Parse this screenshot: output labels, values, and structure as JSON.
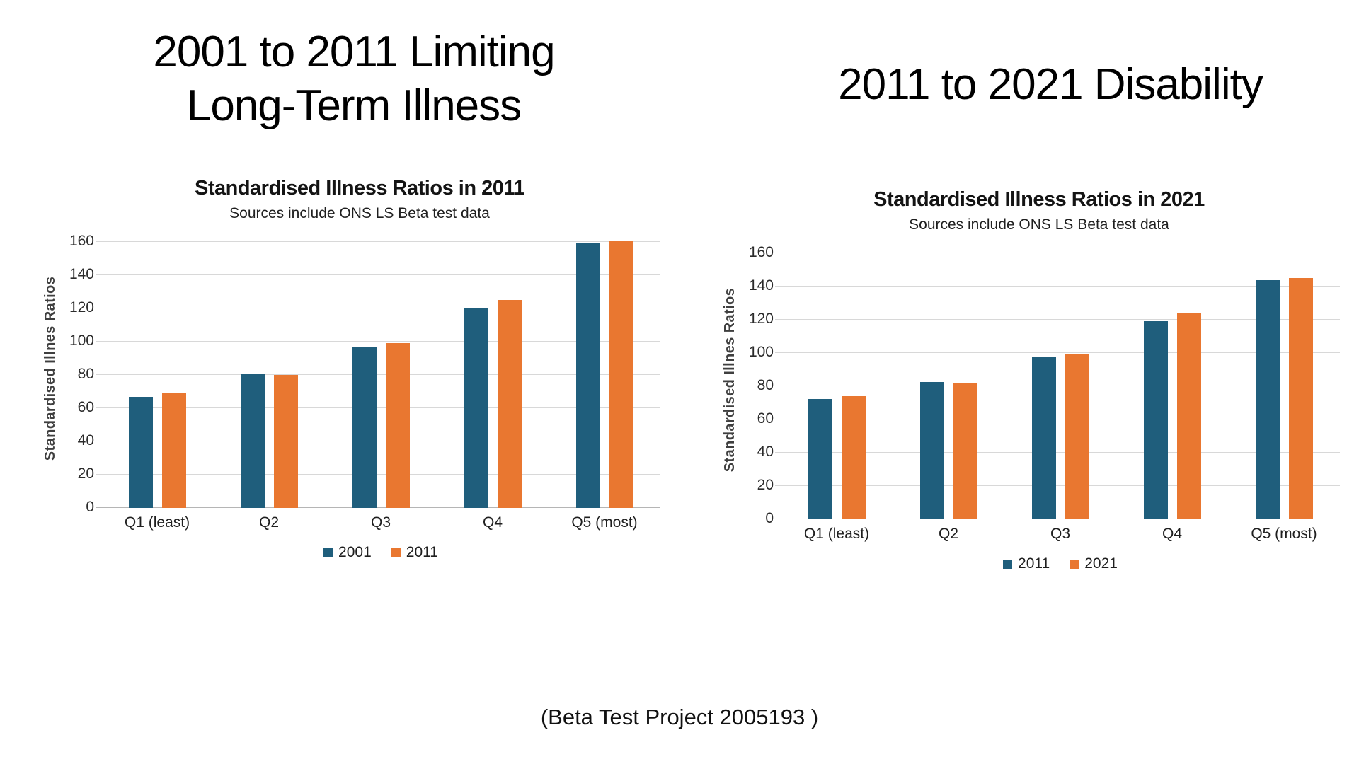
{
  "slide": {
    "heading_left_line1": "2001 to 2011 Limiting",
    "heading_left_line2": "Long-Term Illness",
    "heading_right": "2011 to 2021 Disability",
    "caption": "(Beta Test Project 2005193 )"
  },
  "colors": {
    "series_blue": "#1F5E7C",
    "series_orange": "#E97730",
    "gridline": "#d8d8d8",
    "axis_line": "#b5b5b5"
  },
  "chart_data": [
    {
      "type": "bar",
      "title": "Standardised Illness Ratios in 2011",
      "subtitle": "Sources include ONS LS Beta test data",
      "ylabel": "Standardised Illnes Ratios",
      "xlabel": "",
      "categories": [
        "Q1 (least)",
        "Q2",
        "Q3",
        "Q4",
        "Q5 (most)"
      ],
      "series": [
        {
          "name": "2001",
          "color": "#1F5E7C",
          "values": [
            67,
            80.5,
            96.5,
            120,
            159.5
          ]
        },
        {
          "name": "2011",
          "color": "#E97730",
          "values": [
            69.5,
            80,
            99,
            125,
            160.5
          ]
        }
      ],
      "ylim": [
        0,
        160
      ],
      "ytick_step": 20,
      "grid": true,
      "legend_position": "bottom"
    },
    {
      "type": "bar",
      "title": "Standardised Illness Ratios in 2021",
      "subtitle": "Sources include ONS LS Beta test data",
      "ylabel": "Standardised Illnes Ratios",
      "xlabel": "",
      "categories": [
        "Q1 (least)",
        "Q2",
        "Q3",
        "Q4",
        "Q5 (most)"
      ],
      "series": [
        {
          "name": "2011",
          "color": "#1F5E7C",
          "values": [
            72.5,
            82.5,
            98,
            119,
            144
          ]
        },
        {
          "name": "2021",
          "color": "#E97730",
          "values": [
            74,
            81.5,
            99.5,
            124,
            145
          ]
        }
      ],
      "ylim": [
        0,
        160
      ],
      "ytick_step": 20,
      "grid": true,
      "legend_position": "bottom"
    }
  ]
}
